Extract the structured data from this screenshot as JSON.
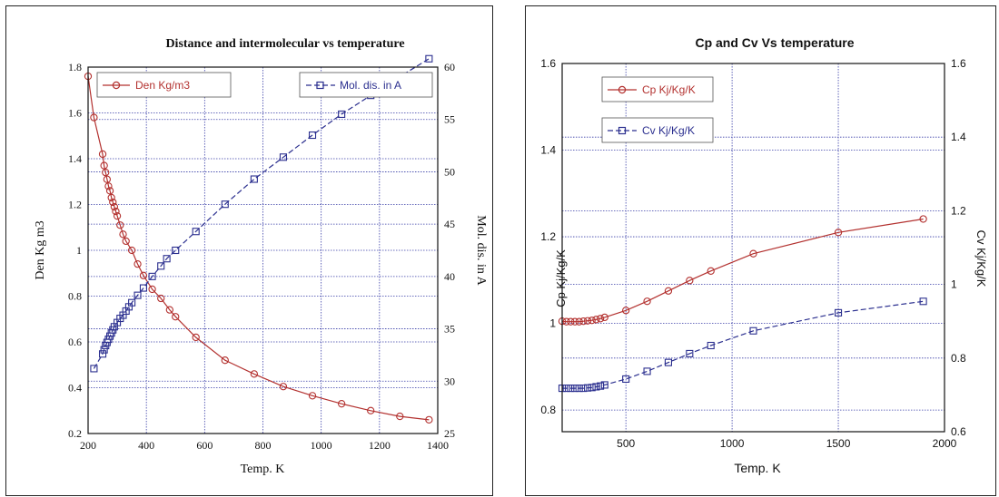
{
  "colors": {
    "red": "#b3312f",
    "blue": "#2b2f8f",
    "grid": "#3a3fa8",
    "frame": "#111111"
  },
  "chart_data": [
    {
      "type": "line",
      "title": "Distance and intermolecular vs temperature",
      "xlabel": "Temp. K",
      "ylabel": "Den Kg m3",
      "y2label": "Mol. dis. in A",
      "xlim": [
        200,
        1400
      ],
      "ylim": [
        0.2,
        1.8
      ],
      "y2lim": [
        25,
        60
      ],
      "x_ticks": [
        "200",
        "400",
        "600",
        "800",
        "1000",
        "1200",
        "1400"
      ],
      "y_ticks": [
        "0.2",
        "0.4",
        "0.6",
        "0.8",
        "1",
        "1.2",
        "1.4",
        "1.6",
        "1.8"
      ],
      "y2_ticks": [
        "25",
        "30",
        "35",
        "40",
        "45",
        "50",
        "55",
        "60"
      ],
      "grid": true,
      "series": [
        {
          "name": "Den Kg/m3",
          "axis": "left",
          "marker": "circle",
          "color": "#b3312f",
          "legend_position": "top-left",
          "x": [
            200,
            220,
            250,
            255,
            260,
            265,
            270,
            275,
            280,
            285,
            290,
            295,
            300,
            310,
            320,
            330,
            350,
            370,
            390,
            420,
            450,
            480,
            500,
            570,
            670,
            770,
            870,
            970,
            1070,
            1170,
            1270,
            1370
          ],
          "y": [
            1.76,
            1.58,
            1.42,
            1.37,
            1.34,
            1.31,
            1.28,
            1.26,
            1.23,
            1.21,
            1.19,
            1.17,
            1.15,
            1.11,
            1.07,
            1.04,
            1.0,
            0.94,
            0.89,
            0.83,
            0.79,
            0.74,
            0.71,
            0.62,
            0.52,
            0.46,
            0.405,
            0.365,
            0.33,
            0.3,
            0.275,
            0.26
          ]
        },
        {
          "name": "Mol. dis. in A",
          "axis": "right",
          "marker": "square",
          "color": "#2b2f8f",
          "legend_position": "top-right",
          "x": [
            220,
            250,
            255,
            260,
            265,
            270,
            275,
            280,
            285,
            290,
            300,
            310,
            320,
            330,
            340,
            350,
            370,
            390,
            420,
            450,
            470,
            500,
            570,
            670,
            770,
            870,
            970,
            1070,
            1170,
            1270,
            1370
          ],
          "y": [
            31.2,
            32.6,
            33.0,
            33.4,
            33.7,
            34.0,
            34.3,
            34.6,
            34.9,
            35.2,
            35.6,
            36.0,
            36.3,
            36.7,
            37.1,
            37.5,
            38.2,
            38.9,
            40.0,
            41.0,
            41.7,
            42.5,
            44.3,
            46.9,
            49.3,
            51.4,
            53.5,
            55.5,
            57.3,
            59.1,
            60.8
          ]
        }
      ]
    },
    {
      "type": "line",
      "title": "Cp and Cv Vs temperature",
      "xlabel": "Temp. K",
      "ylabel": "Cp Kj/Kg/K",
      "y2label": "Cv Kj/Kg/K",
      "xlim": [
        200,
        2000
      ],
      "ylim": [
        0.75,
        1.6
      ],
      "y2lim": [
        0.6,
        1.6
      ],
      "x_ticks": [
        "500",
        "1000",
        "1500",
        "2000"
      ],
      "y_ticks": [
        "0.8",
        "1",
        "1.2",
        "1.4",
        "1.6"
      ],
      "y2_ticks": [
        "0.6",
        "0.8",
        "1",
        "1.2",
        "1.4",
        "1.6"
      ],
      "grid": true,
      "series": [
        {
          "name": "Cp Kj/Kg/K",
          "axis": "left",
          "marker": "circle",
          "color": "#b3312f",
          "legend_position": "top-left",
          "x": [
            200,
            220,
            240,
            260,
            280,
            300,
            320,
            340,
            360,
            380,
            400,
            500,
            600,
            700,
            800,
            900,
            1100,
            1500,
            1900
          ],
          "y": [
            1.005,
            1.004,
            1.004,
            1.004,
            1.004,
            1.005,
            1.006,
            1.007,
            1.009,
            1.011,
            1.014,
            1.03,
            1.051,
            1.075,
            1.099,
            1.121,
            1.161,
            1.21,
            1.241
          ]
        },
        {
          "name": "Cv Kj/Kg/K",
          "axis": "right",
          "marker": "square",
          "color": "#2b2f8f",
          "legend_position": "top-left",
          "x": [
            200,
            220,
            240,
            260,
            280,
            300,
            320,
            340,
            360,
            380,
            400,
            500,
            600,
            700,
            800,
            900,
            1100,
            1500,
            1900
          ],
          "y": [
            0.718,
            0.718,
            0.718,
            0.718,
            0.718,
            0.718,
            0.719,
            0.72,
            0.722,
            0.724,
            0.727,
            0.743,
            0.764,
            0.788,
            0.812,
            0.834,
            0.874,
            0.923,
            0.954
          ]
        }
      ]
    }
  ]
}
